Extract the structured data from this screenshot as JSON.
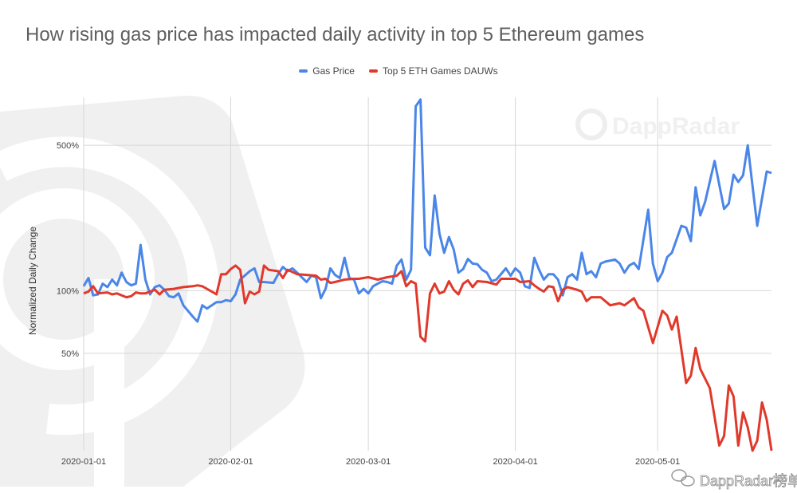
{
  "chart_data": {
    "type": "line",
    "title": "How rising gas price has impacted daily activity in top 5 Ethereum games",
    "xlabel": "",
    "ylabel": "Normalized Daily Change",
    "y_scale": "log",
    "ylim": [
      17,
      850
    ],
    "xlim": [
      "2020-01-01",
      "2020-05-25"
    ],
    "grid": true,
    "legend_position": "top",
    "x_ticks": [
      "2020-01-01",
      "2020-02-01",
      "2020-03-01",
      "2020-04-01",
      "2020-05-01"
    ],
    "y_ticks": [
      {
        "value": 50,
        "label": "50%"
      },
      {
        "value": 100,
        "label": "100%"
      },
      {
        "value": 500,
        "label": "500%"
      }
    ],
    "series": [
      {
        "name": "Gas Price",
        "color": "#4a86e8",
        "points": [
          [
            "2020-01-01",
            105
          ],
          [
            "2020-01-02",
            115
          ],
          [
            "2020-01-03",
            95
          ],
          [
            "2020-01-04",
            96
          ],
          [
            "2020-01-05",
            108
          ],
          [
            "2020-01-06",
            104
          ],
          [
            "2020-01-07",
            113
          ],
          [
            "2020-01-08",
            106
          ],
          [
            "2020-01-09",
            122
          ],
          [
            "2020-01-10",
            110
          ],
          [
            "2020-01-11",
            106
          ],
          [
            "2020-01-12",
            108
          ],
          [
            "2020-01-13",
            166
          ],
          [
            "2020-01-14",
            113
          ],
          [
            "2020-01-15",
            96
          ],
          [
            "2020-01-16",
            104
          ],
          [
            "2020-01-17",
            106
          ],
          [
            "2020-01-18",
            101
          ],
          [
            "2020-01-19",
            94
          ],
          [
            "2020-01-20",
            93
          ],
          [
            "2020-01-21",
            97
          ],
          [
            "2020-01-22",
            85
          ],
          [
            "2020-01-24",
            75
          ],
          [
            "2020-01-25",
            71
          ],
          [
            "2020-01-26",
            85
          ],
          [
            "2020-01-27",
            82
          ],
          [
            "2020-01-28",
            85
          ],
          [
            "2020-01-29",
            88
          ],
          [
            "2020-01-30",
            88
          ],
          [
            "2020-01-31",
            90
          ],
          [
            "2020-02-01",
            89
          ],
          [
            "2020-02-02",
            96
          ],
          [
            "2020-02-03",
            113
          ],
          [
            "2020-02-05",
            124
          ],
          [
            "2020-02-06",
            128
          ],
          [
            "2020-02-07",
            110
          ],
          [
            "2020-02-08",
            110
          ],
          [
            "2020-02-10",
            109
          ],
          [
            "2020-02-11",
            120
          ],
          [
            "2020-02-12",
            130
          ],
          [
            "2020-02-13",
            124
          ],
          [
            "2020-02-14",
            128
          ],
          [
            "2020-02-15",
            122
          ],
          [
            "2020-02-17",
            110
          ],
          [
            "2020-02-18",
            118
          ],
          [
            "2020-02-19",
            116
          ],
          [
            "2020-02-20",
            92
          ],
          [
            "2020-02-21",
            102
          ],
          [
            "2020-02-22",
            128
          ],
          [
            "2020-02-23",
            119
          ],
          [
            "2020-02-24",
            115
          ],
          [
            "2020-02-25",
            144
          ],
          [
            "2020-02-26",
            115
          ],
          [
            "2020-02-27",
            113
          ],
          [
            "2020-02-28",
            97
          ],
          [
            "2020-02-29",
            102
          ],
          [
            "2020-03-01",
            97
          ],
          [
            "2020-03-02",
            105
          ],
          [
            "2020-03-03",
            108
          ],
          [
            "2020-03-04",
            111
          ],
          [
            "2020-03-05",
            110
          ],
          [
            "2020-03-06",
            108
          ],
          [
            "2020-03-07",
            132
          ],
          [
            "2020-03-08",
            141
          ],
          [
            "2020-03-09",
            113
          ],
          [
            "2020-03-10",
            126
          ],
          [
            "2020-03-11",
            770
          ],
          [
            "2020-03-12",
            830
          ],
          [
            "2020-03-13",
            161
          ],
          [
            "2020-03-14",
            148
          ],
          [
            "2020-03-15",
            287
          ],
          [
            "2020-03-16",
            188
          ],
          [
            "2020-03-17",
            152
          ],
          [
            "2020-03-18",
            181
          ],
          [
            "2020-03-19",
            158
          ],
          [
            "2020-03-20",
            122
          ],
          [
            "2020-03-21",
            127
          ],
          [
            "2020-03-22",
            142
          ],
          [
            "2020-03-23",
            135
          ],
          [
            "2020-03-24",
            134
          ],
          [
            "2020-03-25",
            126
          ],
          [
            "2020-03-26",
            122
          ],
          [
            "2020-03-27",
            111
          ],
          [
            "2020-03-28",
            113
          ],
          [
            "2020-03-30",
            128
          ],
          [
            "2020-03-31",
            118
          ],
          [
            "2020-04-01",
            128
          ],
          [
            "2020-04-02",
            122
          ],
          [
            "2020-04-03",
            105
          ],
          [
            "2020-04-04",
            103
          ],
          [
            "2020-04-05",
            144
          ],
          [
            "2020-04-06",
            126
          ],
          [
            "2020-04-07",
            113
          ],
          [
            "2020-04-08",
            120
          ],
          [
            "2020-04-09",
            120
          ],
          [
            "2020-04-10",
            113
          ],
          [
            "2020-04-11",
            95
          ],
          [
            "2020-04-12",
            116
          ],
          [
            "2020-04-13",
            120
          ],
          [
            "2020-04-14",
            113
          ],
          [
            "2020-04-15",
            152
          ],
          [
            "2020-04-16",
            120
          ],
          [
            "2020-04-17",
            124
          ],
          [
            "2020-04-18",
            116
          ],
          [
            "2020-04-19",
            135
          ],
          [
            "2020-04-20",
            138
          ],
          [
            "2020-04-22",
            141
          ],
          [
            "2020-04-23",
            135
          ],
          [
            "2020-04-24",
            122
          ],
          [
            "2020-04-25",
            132
          ],
          [
            "2020-04-26",
            136
          ],
          [
            "2020-04-27",
            127
          ],
          [
            "2020-04-29",
            245
          ],
          [
            "2020-04-30",
            135
          ],
          [
            "2020-05-01",
            111
          ],
          [
            "2020-05-02",
            122
          ],
          [
            "2020-05-03",
            145
          ],
          [
            "2020-05-04",
            152
          ],
          [
            "2020-05-06",
            205
          ],
          [
            "2020-05-07",
            201
          ],
          [
            "2020-05-08",
            173
          ],
          [
            "2020-05-09",
            314
          ],
          [
            "2020-05-10",
            230
          ],
          [
            "2020-05-11",
            267
          ],
          [
            "2020-05-13",
            420
          ],
          [
            "2020-05-15",
            247
          ],
          [
            "2020-05-16",
            262
          ],
          [
            "2020-05-17",
            361
          ],
          [
            "2020-05-18",
            333
          ],
          [
            "2020-05-19",
            358
          ],
          [
            "2020-05-20",
            500
          ],
          [
            "2020-05-22",
            205
          ],
          [
            "2020-05-24",
            374
          ],
          [
            "2020-05-25",
            368
          ]
        ]
      },
      {
        "name": "Top 5 ETH Games DAUWs",
        "color": "#e0392b",
        "points": [
          [
            "2020-01-01",
            97
          ],
          [
            "2020-01-02",
            99
          ],
          [
            "2020-01-03",
            105
          ],
          [
            "2020-01-04",
            97
          ],
          [
            "2020-01-06",
            98
          ],
          [
            "2020-01-07",
            96
          ],
          [
            "2020-01-08",
            97
          ],
          [
            "2020-01-10",
            93
          ],
          [
            "2020-01-11",
            94
          ],
          [
            "2020-01-12",
            98
          ],
          [
            "2020-01-13",
            97
          ],
          [
            "2020-01-14",
            97
          ],
          [
            "2020-01-16",
            101
          ],
          [
            "2020-01-17",
            96
          ],
          [
            "2020-01-18",
            101
          ],
          [
            "2020-01-20",
            102
          ],
          [
            "2020-01-22",
            104
          ],
          [
            "2020-01-24",
            105
          ],
          [
            "2020-01-25",
            106
          ],
          [
            "2020-01-26",
            105
          ],
          [
            "2020-01-28",
            99
          ],
          [
            "2020-01-29",
            96
          ],
          [
            "2020-01-30",
            120
          ],
          [
            "2020-01-31",
            120
          ],
          [
            "2020-02-01",
            127
          ],
          [
            "2020-02-02",
            132
          ],
          [
            "2020-02-03",
            126
          ],
          [
            "2020-02-04",
            87
          ],
          [
            "2020-02-05",
            99
          ],
          [
            "2020-02-06",
            96
          ],
          [
            "2020-02-07",
            99
          ],
          [
            "2020-02-08",
            132
          ],
          [
            "2020-02-09",
            126
          ],
          [
            "2020-02-11",
            124
          ],
          [
            "2020-02-12",
            115
          ],
          [
            "2020-02-13",
            126
          ],
          [
            "2020-02-15",
            120
          ],
          [
            "2020-02-17",
            119
          ],
          [
            "2020-02-19",
            118
          ],
          [
            "2020-02-20",
            113
          ],
          [
            "2020-02-21",
            114
          ],
          [
            "2020-02-22",
            109
          ],
          [
            "2020-02-23",
            110
          ],
          [
            "2020-02-25",
            113
          ],
          [
            "2020-02-27",
            114
          ],
          [
            "2020-02-28",
            114
          ],
          [
            "2020-03-01",
            116
          ],
          [
            "2020-03-03",
            113
          ],
          [
            "2020-03-05",
            116
          ],
          [
            "2020-03-07",
            118
          ],
          [
            "2020-03-08",
            124
          ],
          [
            "2020-03-09",
            105
          ],
          [
            "2020-03-10",
            111
          ],
          [
            "2020-03-11",
            108
          ],
          [
            "2020-03-12",
            60
          ],
          [
            "2020-03-13",
            57
          ],
          [
            "2020-03-14",
            97
          ],
          [
            "2020-03-15",
            108
          ],
          [
            "2020-03-16",
            97
          ],
          [
            "2020-03-17",
            99
          ],
          [
            "2020-03-18",
            111
          ],
          [
            "2020-03-19",
            101
          ],
          [
            "2020-03-20",
            96
          ],
          [
            "2020-03-21",
            108
          ],
          [
            "2020-03-22",
            112
          ],
          [
            "2020-03-23",
            104
          ],
          [
            "2020-03-24",
            111
          ],
          [
            "2020-03-26",
            110
          ],
          [
            "2020-03-28",
            107
          ],
          [
            "2020-03-29",
            114
          ],
          [
            "2020-04-01",
            114
          ],
          [
            "2020-04-02",
            110
          ],
          [
            "2020-04-04",
            111
          ],
          [
            "2020-04-05",
            106
          ],
          [
            "2020-04-06",
            102
          ],
          [
            "2020-04-07",
            99
          ],
          [
            "2020-04-08",
            105
          ],
          [
            "2020-04-09",
            104
          ],
          [
            "2020-04-10",
            89
          ],
          [
            "2020-04-11",
            101
          ],
          [
            "2020-04-12",
            104
          ],
          [
            "2020-04-14",
            101
          ],
          [
            "2020-04-15",
            99
          ],
          [
            "2020-04-16",
            89
          ],
          [
            "2020-04-17",
            93
          ],
          [
            "2020-04-18",
            93
          ],
          [
            "2020-04-19",
            93
          ],
          [
            "2020-04-21",
            85
          ],
          [
            "2020-04-23",
            87
          ],
          [
            "2020-04-24",
            85
          ],
          [
            "2020-04-26",
            92
          ],
          [
            "2020-04-27",
            83
          ],
          [
            "2020-04-28",
            80
          ],
          [
            "2020-04-30",
            56
          ],
          [
            "2020-05-02",
            80
          ],
          [
            "2020-05-03",
            76
          ],
          [
            "2020-05-04",
            65
          ],
          [
            "2020-05-05",
            75
          ],
          [
            "2020-05-07",
            36
          ],
          [
            "2020-05-08",
            39
          ],
          [
            "2020-05-09",
            53
          ],
          [
            "2020-05-10",
            42
          ],
          [
            "2020-05-12",
            34
          ],
          [
            "2020-05-14",
            18
          ],
          [
            "2020-05-15",
            20
          ],
          [
            "2020-05-16",
            35
          ],
          [
            "2020-05-17",
            31
          ],
          [
            "2020-05-18",
            18
          ],
          [
            "2020-05-19",
            26
          ],
          [
            "2020-05-20",
            22
          ],
          [
            "2020-05-21",
            17
          ],
          [
            "2020-05-22",
            19
          ],
          [
            "2020-05-23",
            29
          ],
          [
            "2020-05-24",
            24
          ],
          [
            "2020-05-25",
            17
          ]
        ]
      }
    ]
  },
  "watermarks": {
    "top_right": "DappRadar",
    "bottom_right": "DappRadar榜单"
  }
}
